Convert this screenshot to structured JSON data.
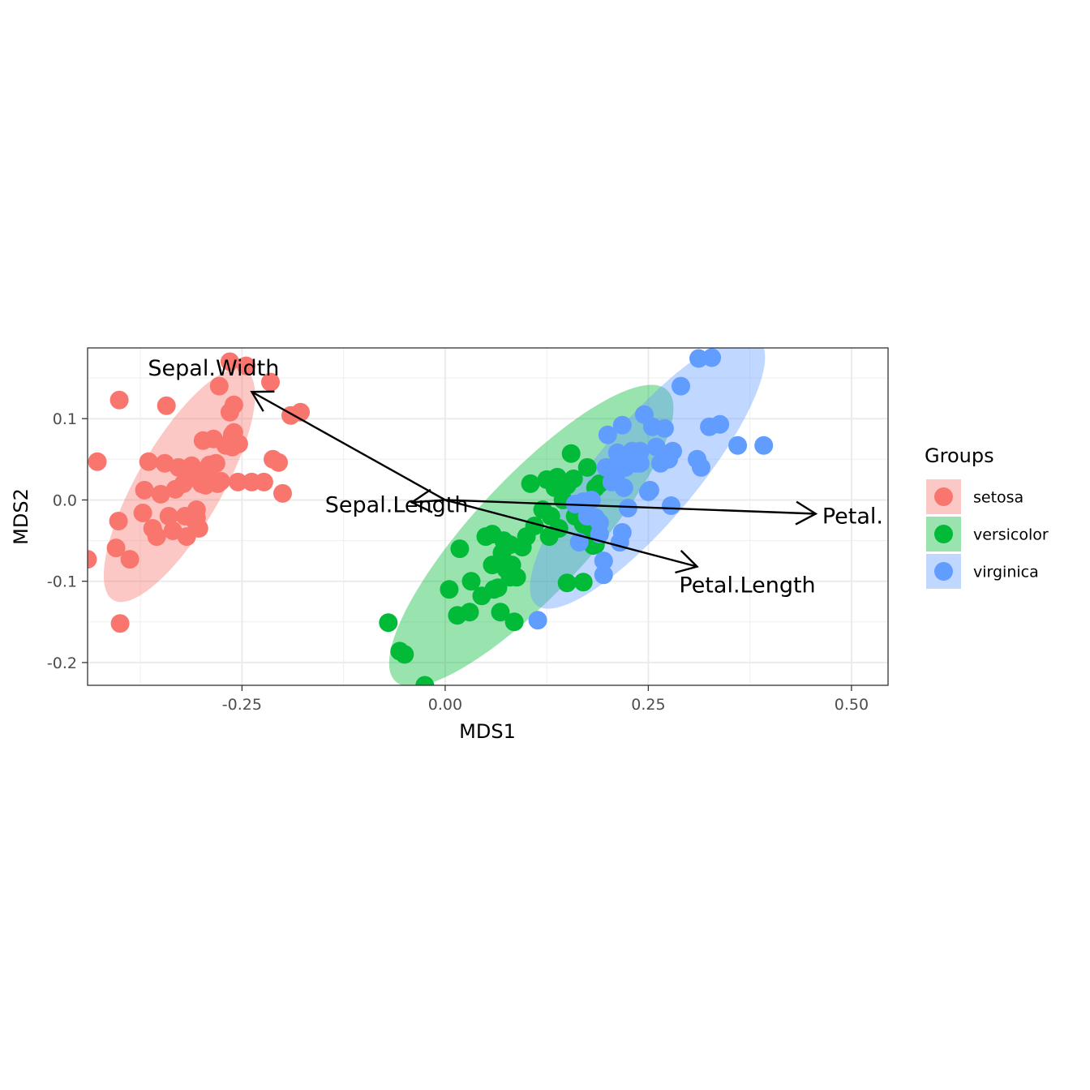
{
  "chart_data": {
    "type": "scatter",
    "xlabel": "MDS1",
    "ylabel": "MDS2",
    "xlim": [
      -0.44,
      0.545
    ],
    "ylim": [
      -0.228,
      0.187
    ],
    "x_ticks": [
      {
        "value": -0.25,
        "label": "-0.25"
      },
      {
        "value": 0.0,
        "label": "0.00"
      },
      {
        "value": 0.25,
        "label": "0.25"
      },
      {
        "value": 0.5,
        "label": "0.50"
      }
    ],
    "y_ticks": [
      {
        "value": 0.1,
        "label": "0.1"
      },
      {
        "value": 0.0,
        "label": "0.0"
      },
      {
        "value": -0.1,
        "label": "-0.1"
      },
      {
        "value": -0.2,
        "label": "-0.2"
      }
    ],
    "grid": true,
    "legend": {
      "title": "Groups",
      "position": "right",
      "entries": [
        "setosa",
        "versicolor",
        "virginica"
      ]
    },
    "colors": {
      "setosa": "#F8766D",
      "versicolor": "#00BA38",
      "virginica": "#619CFF"
    },
    "series": [
      {
        "name": "setosa",
        "points": [
          [
            -0.44,
            -0.073
          ],
          [
            -0.428,
            0.047
          ],
          [
            -0.401,
            0.123
          ],
          [
            -0.4,
            -0.152
          ],
          [
            -0.402,
            -0.026
          ],
          [
            -0.405,
            -0.059
          ],
          [
            -0.388,
            -0.073
          ],
          [
            -0.37,
            0.012
          ],
          [
            -0.372,
            -0.016
          ],
          [
            -0.365,
            0.047
          ],
          [
            -0.36,
            -0.035
          ],
          [
            -0.355,
            -0.045
          ],
          [
            -0.35,
            0.007
          ],
          [
            -0.345,
            0.045
          ],
          [
            -0.343,
            0.116
          ],
          [
            -0.34,
            -0.02
          ],
          [
            -0.335,
            -0.038
          ],
          [
            -0.332,
            0.013
          ],
          [
            -0.328,
            0.04
          ],
          [
            -0.322,
            0.02
          ],
          [
            -0.32,
            -0.02
          ],
          [
            -0.318,
            -0.045
          ],
          [
            -0.315,
            0.028
          ],
          [
            -0.312,
            0.042
          ],
          [
            -0.306,
            -0.022
          ],
          [
            -0.303,
            -0.035
          ],
          [
            -0.298,
            0.073
          ],
          [
            -0.295,
            0.03
          ],
          [
            -0.29,
            0.04
          ],
          [
            -0.285,
            0.075
          ],
          [
            -0.282,
            0.045
          ],
          [
            -0.278,
            0.14
          ],
          [
            -0.276,
            0.023
          ],
          [
            -0.27,
            0.067
          ],
          [
            -0.262,
            0.065
          ],
          [
            -0.306,
            -0.012
          ],
          [
            -0.307,
            -0.027
          ],
          [
            -0.3,
            0.02
          ],
          [
            -0.295,
            0.018
          ],
          [
            -0.28,
            0.02
          ],
          [
            -0.26,
            0.117
          ],
          [
            -0.26,
            0.083
          ],
          [
            -0.255,
            0.022
          ],
          [
            -0.245,
            0.165
          ],
          [
            -0.238,
            0.022
          ],
          [
            -0.223,
            0.022
          ],
          [
            -0.212,
            0.05
          ],
          [
            -0.205,
            0.046
          ],
          [
            -0.2,
            0.008
          ],
          [
            -0.19,
            0.104
          ],
          [
            -0.178,
            0.108
          ],
          [
            -0.262,
            0.08
          ],
          [
            -0.254,
            0.069
          ],
          [
            -0.215,
            0.145
          ],
          [
            -0.265,
            0.17
          ],
          [
            -0.265,
            0.108
          ],
          [
            -0.29,
            0.043
          ],
          [
            -0.262,
            0.08
          ]
        ]
      },
      {
        "name": "versicolor",
        "points": [
          [
            -0.07,
            -0.151
          ],
          [
            -0.056,
            -0.186
          ],
          [
            -0.05,
            -0.19
          ],
          [
            -0.025,
            -0.228
          ],
          [
            0.005,
            -0.11
          ],
          [
            0.015,
            -0.142
          ],
          [
            0.018,
            -0.06
          ],
          [
            0.03,
            -0.138
          ],
          [
            0.032,
            -0.1
          ],
          [
            0.045,
            -0.118
          ],
          [
            0.05,
            -0.045
          ],
          [
            0.058,
            -0.042
          ],
          [
            0.058,
            -0.08
          ],
          [
            0.06,
            -0.11
          ],
          [
            0.065,
            -0.108
          ],
          [
            0.068,
            -0.138
          ],
          [
            0.07,
            -0.065
          ],
          [
            0.072,
            -0.05
          ],
          [
            0.075,
            -0.085
          ],
          [
            0.08,
            -0.055
          ],
          [
            0.08,
            -0.095
          ],
          [
            0.082,
            -0.08
          ],
          [
            0.085,
            -0.15
          ],
          [
            0.088,
            -0.095
          ],
          [
            0.095,
            -0.058
          ],
          [
            0.1,
            -0.045
          ],
          [
            0.105,
            0.02
          ],
          [
            0.11,
            -0.032
          ],
          [
            0.12,
            -0.012
          ],
          [
            0.125,
            0.025
          ],
          [
            0.128,
            -0.045
          ],
          [
            0.13,
            -0.02
          ],
          [
            0.135,
            0.015
          ],
          [
            0.138,
            0.028
          ],
          [
            0.14,
            -0.035
          ],
          [
            0.145,
            0.0
          ],
          [
            0.15,
            0.018
          ],
          [
            0.155,
            0.057
          ],
          [
            0.158,
            0.026
          ],
          [
            0.16,
            -0.02
          ],
          [
            0.165,
            -0.012
          ],
          [
            0.17,
            -0.03
          ],
          [
            0.175,
            0.04
          ],
          [
            0.18,
            -0.045
          ],
          [
            0.182,
            -0.056
          ],
          [
            0.185,
            0.015
          ],
          [
            0.19,
            0.02
          ],
          [
            0.15,
            -0.102
          ],
          [
            0.17,
            -0.101
          ],
          [
            0.185,
            -0.055
          ]
        ]
      },
      {
        "name": "virginica",
        "points": [
          [
            0.114,
            -0.148
          ],
          [
            0.16,
            -0.005
          ],
          [
            0.165,
            -0.052
          ],
          [
            0.17,
            -0.002
          ],
          [
            0.175,
            -0.02
          ],
          [
            0.18,
            0.0
          ],
          [
            0.185,
            -0.022
          ],
          [
            0.19,
            -0.042
          ],
          [
            0.195,
            -0.075
          ],
          [
            0.195,
            -0.092
          ],
          [
            0.198,
            0.04
          ],
          [
            0.2,
            0.08
          ],
          [
            0.205,
            0.04
          ],
          [
            0.21,
            0.03
          ],
          [
            0.212,
            0.058
          ],
          [
            0.215,
            -0.052
          ],
          [
            0.218,
            -0.04
          ],
          [
            0.218,
            0.092
          ],
          [
            0.22,
            0.015
          ],
          [
            0.222,
            0.04
          ],
          [
            0.225,
            -0.01
          ],
          [
            0.23,
            0.06
          ],
          [
            0.233,
            0.055
          ],
          [
            0.235,
            0.045
          ],
          [
            0.24,
            0.06
          ],
          [
            0.245,
            0.105
          ],
          [
            0.25,
            0.01
          ],
          [
            0.252,
            0.012
          ],
          [
            0.255,
            0.09
          ],
          [
            0.26,
            0.065
          ],
          [
            0.265,
            0.045
          ],
          [
            0.27,
            0.088
          ],
          [
            0.275,
            0.05
          ],
          [
            0.28,
            0.06
          ],
          [
            0.278,
            -0.007
          ],
          [
            0.29,
            0.14
          ],
          [
            0.31,
            0.05
          ],
          [
            0.315,
            0.04
          ],
          [
            0.325,
            0.09
          ],
          [
            0.338,
            0.093
          ],
          [
            0.312,
            0.174
          ],
          [
            0.328,
            0.175
          ],
          [
            0.36,
            0.067
          ],
          [
            0.392,
            0.067
          ],
          [
            0.225,
            0.045
          ],
          [
            0.23,
            0.05
          ],
          [
            0.24,
            0.045
          ],
          [
            0.205,
            0.022
          ],
          [
            0.215,
            0.045
          ],
          [
            0.19,
            -0.028
          ]
        ]
      }
    ],
    "ellipses": [
      {
        "group": "setosa",
        "center": [
          -0.327,
          0.018
        ],
        "semi_major": 0.163,
        "semi_minor": 0.052,
        "angle_deg": 60
      },
      {
        "group": "versicolor",
        "center": [
          0.106,
          -0.044
        ],
        "semi_major": 0.245,
        "semi_minor": 0.071,
        "angle_deg": 47
      },
      {
        "group": "virginica",
        "center": [
          0.249,
          0.034
        ],
        "semi_major": 0.213,
        "semi_minor": 0.061,
        "angle_deg": 50
      }
    ],
    "loadings": [
      {
        "name": "Sepal.Width",
        "x": -0.238,
        "y": 0.133
      },
      {
        "name": "Sepal.Length",
        "x": -0.041,
        "y": -0.003
      },
      {
        "name": "Petal.",
        "x": 0.456,
        "y": -0.017
      },
      {
        "name": "Petal.Length",
        "x": 0.31,
        "y": -0.082
      }
    ]
  }
}
